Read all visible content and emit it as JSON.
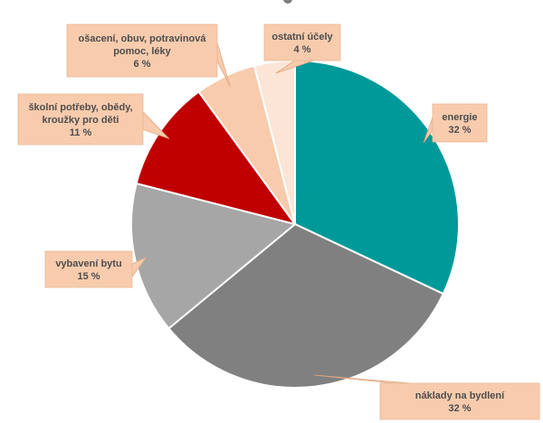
{
  "chart_data": {
    "type": "pie",
    "start_angle_deg": 0,
    "direction": "clockwise",
    "slices": [
      {
        "label": "energie",
        "value": 32,
        "value_label": "32 %",
        "color": "#009999"
      },
      {
        "label": "náklady na bydlení",
        "value": 32,
        "value_label": "32 %",
        "color": "#808080"
      },
      {
        "label": "vybavení bytu",
        "value": 15,
        "value_label": "15 %",
        "color": "#A6A6A6"
      },
      {
        "label": "školní potřeby, obědy, kroužky pro děti",
        "value": 11,
        "value_label": "11 %",
        "color": "#C00000"
      },
      {
        "label": "ošacení, obuv, potravinová pomoc, léky",
        "value": 6,
        "value_label": "6 %",
        "color": "#F8CBAD"
      },
      {
        "label": "ostatní účely",
        "value": 4,
        "value_label": "4 %",
        "color": "#FBE5D6"
      }
    ],
    "callout_fill": "#F8CBAD",
    "slice_border": "#ffffff",
    "legend": "none",
    "title": ""
  }
}
